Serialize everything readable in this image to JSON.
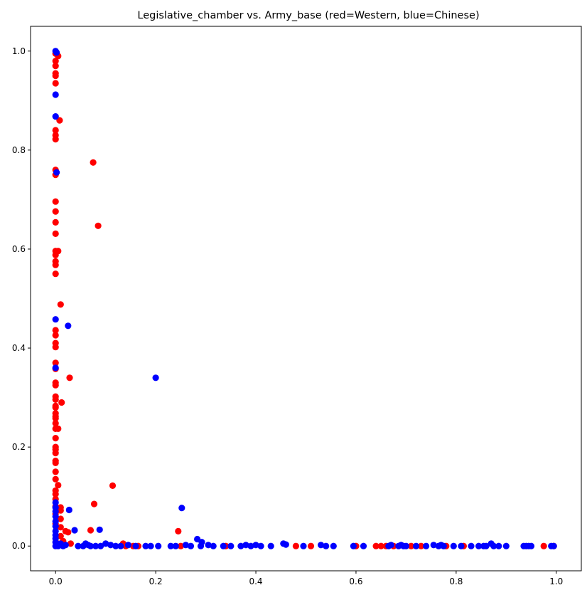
{
  "chart_data": {
    "type": "scatter",
    "title": "Legislative_chamber vs. Army_base (red=Western, blue=Chinese)",
    "xlabel": "",
    "ylabel": "",
    "xlim": [
      -0.05,
      1.05
    ],
    "ylim": [
      -0.05,
      1.05
    ],
    "xticks": [
      "0.0",
      "0.2",
      "0.4",
      "0.6",
      "0.8",
      "1.0"
    ],
    "yticks": [
      "0.0",
      "0.2",
      "0.4",
      "0.6",
      "0.8",
      "1.0"
    ],
    "grid": false,
    "series": [
      {
        "color": "#ff0000",
        "points": [
          [
            0.0,
            0.995
          ],
          [
            0.005,
            0.99
          ],
          [
            0.0,
            0.98
          ],
          [
            0.0,
            0.97
          ],
          [
            0.0,
            0.955
          ],
          [
            0.0,
            0.95
          ],
          [
            0.0,
            0.935
          ],
          [
            0.008,
            0.86
          ],
          [
            0.0,
            0.84
          ],
          [
            0.0,
            0.83
          ],
          [
            0.0,
            0.822
          ],
          [
            0.0,
            0.76
          ],
          [
            0.0,
            0.75
          ],
          [
            0.0,
            0.696
          ],
          [
            0.0,
            0.676
          ],
          [
            0.0,
            0.654
          ],
          [
            0.0,
            0.631
          ],
          [
            0.0,
            0.596
          ],
          [
            0.005,
            0.596
          ],
          [
            0.0,
            0.588
          ],
          [
            0.0,
            0.575
          ],
          [
            0.0,
            0.568
          ],
          [
            0.0,
            0.55
          ],
          [
            0.01,
            0.488
          ],
          [
            0.0,
            0.436
          ],
          [
            0.0,
            0.426
          ],
          [
            0.0,
            0.41
          ],
          [
            0.0,
            0.402
          ],
          [
            0.0,
            0.37
          ],
          [
            0.0,
            0.358
          ],
          [
            0.0,
            0.33
          ],
          [
            0.0,
            0.325
          ],
          [
            0.0,
            0.302
          ],
          [
            0.0,
            0.296
          ],
          [
            0.0,
            0.283
          ],
          [
            0.0,
            0.28
          ],
          [
            0.0,
            0.268
          ],
          [
            0.0,
            0.262
          ],
          [
            0.0,
            0.258
          ],
          [
            0.0,
            0.248
          ],
          [
            0.0,
            0.237
          ],
          [
            0.005,
            0.237
          ],
          [
            0.0,
            0.218
          ],
          [
            0.0,
            0.2
          ],
          [
            0.0,
            0.195
          ],
          [
            0.0,
            0.188
          ],
          [
            0.0,
            0.172
          ],
          [
            0.0,
            0.168
          ],
          [
            0.0,
            0.15
          ],
          [
            0.0,
            0.135
          ],
          [
            0.0,
            0.112
          ],
          [
            0.0,
            0.105
          ],
          [
            0.0,
            0.095
          ],
          [
            0.005,
            0.123
          ],
          [
            0.0,
            0.08
          ],
          [
            0.01,
            0.078
          ],
          [
            0.01,
            0.072
          ],
          [
            0.0,
            0.065
          ],
          [
            0.01,
            0.055
          ],
          [
            0.0,
            0.045
          ],
          [
            0.01,
            0.038
          ],
          [
            0.02,
            0.03
          ],
          [
            0.025,
            0.028
          ],
          [
            0.01,
            0.02
          ],
          [
            0.015,
            0.01
          ],
          [
            0.03,
            0.005
          ],
          [
            0.005,
            0.005
          ],
          [
            0.028,
            0.34
          ],
          [
            0.012,
            0.29
          ],
          [
            0.075,
            0.775
          ],
          [
            0.085,
            0.647
          ],
          [
            0.114,
            0.122
          ],
          [
            0.077,
            0.085
          ],
          [
            0.07,
            0.032
          ],
          [
            0.245,
            0.03
          ],
          [
            0.135,
            0.005
          ],
          [
            0.14,
            0.0
          ],
          [
            0.155,
            0.0
          ],
          [
            0.165,
            0.0
          ],
          [
            0.25,
            0.0
          ],
          [
            0.34,
            0.0
          ],
          [
            0.48,
            0.0
          ],
          [
            0.51,
            0.0
          ],
          [
            0.6,
            0.0
          ],
          [
            0.64,
            0.0
          ],
          [
            0.65,
            0.0
          ],
          [
            0.66,
            0.0
          ],
          [
            0.675,
            0.0
          ],
          [
            0.71,
            0.0
          ],
          [
            0.73,
            0.0
          ],
          [
            0.78,
            0.0
          ],
          [
            0.815,
            0.0
          ],
          [
            0.975,
            0.0
          ],
          [
            0.995,
            0.0
          ]
        ]
      },
      {
        "color": "#0000ff",
        "points": [
          [
            0.0,
            1.0
          ],
          [
            0.002,
            0.997
          ],
          [
            0.0,
            0.912
          ],
          [
            0.0,
            0.868
          ],
          [
            0.002,
            0.755
          ],
          [
            0.0,
            0.458
          ],
          [
            0.025,
            0.445
          ],
          [
            0.0,
            0.36
          ],
          [
            0.2,
            0.34
          ],
          [
            0.0,
            0.088
          ],
          [
            0.0,
            0.078
          ],
          [
            0.0,
            0.07
          ],
          [
            0.0,
            0.06
          ],
          [
            0.0,
            0.05
          ],
          [
            0.0,
            0.04
          ],
          [
            0.0,
            0.03
          ],
          [
            0.0,
            0.022
          ],
          [
            0.0,
            0.015
          ],
          [
            0.0,
            0.008
          ],
          [
            0.0,
            0.0
          ],
          [
            0.005,
            0.0
          ],
          [
            0.01,
            0.005
          ],
          [
            0.015,
            0.0
          ],
          [
            0.02,
            0.002
          ],
          [
            0.027,
            0.073
          ],
          [
            0.038,
            0.032
          ],
          [
            0.088,
            0.033
          ],
          [
            0.252,
            0.077
          ],
          [
            0.283,
            0.014
          ],
          [
            0.045,
            0.0
          ],
          [
            0.055,
            0.0
          ],
          [
            0.06,
            0.005
          ],
          [
            0.065,
            0.002
          ],
          [
            0.07,
            0.0
          ],
          [
            0.08,
            0.0
          ],
          [
            0.09,
            0.0
          ],
          [
            0.1,
            0.005
          ],
          [
            0.11,
            0.002
          ],
          [
            0.12,
            0.0
          ],
          [
            0.13,
            0.0
          ],
          [
            0.145,
            0.002
          ],
          [
            0.16,
            0.0
          ],
          [
            0.18,
            0.0
          ],
          [
            0.19,
            0.0
          ],
          [
            0.205,
            0.0
          ],
          [
            0.23,
            0.0
          ],
          [
            0.24,
            0.0
          ],
          [
            0.26,
            0.002
          ],
          [
            0.27,
            0.0
          ],
          [
            0.29,
            0.0
          ],
          [
            0.292,
            0.008
          ],
          [
            0.305,
            0.002
          ],
          [
            0.315,
            0.0
          ],
          [
            0.335,
            0.0
          ],
          [
            0.35,
            0.0
          ],
          [
            0.37,
            0.0
          ],
          [
            0.38,
            0.002
          ],
          [
            0.39,
            0.0
          ],
          [
            0.4,
            0.002
          ],
          [
            0.41,
            0.0
          ],
          [
            0.43,
            0.0
          ],
          [
            0.455,
            0.005
          ],
          [
            0.46,
            0.003
          ],
          [
            0.495,
            0.0
          ],
          [
            0.53,
            0.002
          ],
          [
            0.54,
            0.0
          ],
          [
            0.555,
            0.0
          ],
          [
            0.595,
            0.0
          ],
          [
            0.615,
            0.0
          ],
          [
            0.665,
            0.0
          ],
          [
            0.67,
            0.002
          ],
          [
            0.685,
            0.0
          ],
          [
            0.69,
            0.002
          ],
          [
            0.695,
            0.0
          ],
          [
            0.7,
            0.0
          ],
          [
            0.72,
            0.0
          ],
          [
            0.74,
            0.0
          ],
          [
            0.755,
            0.002
          ],
          [
            0.765,
            0.0
          ],
          [
            0.77,
            0.002
          ],
          [
            0.775,
            0.0
          ],
          [
            0.795,
            0.0
          ],
          [
            0.81,
            0.0
          ],
          [
            0.83,
            0.0
          ],
          [
            0.845,
            0.0
          ],
          [
            0.855,
            0.0
          ],
          [
            0.86,
            0.0
          ],
          [
            0.87,
            0.005
          ],
          [
            0.875,
            0.0
          ],
          [
            0.885,
            0.0
          ],
          [
            0.9,
            0.0
          ],
          [
            0.935,
            0.0
          ],
          [
            0.94,
            0.0
          ],
          [
            0.945,
            0.0
          ],
          [
            0.95,
            0.0
          ],
          [
            0.99,
            0.0
          ],
          [
            0.995,
            0.0
          ]
        ]
      }
    ]
  }
}
